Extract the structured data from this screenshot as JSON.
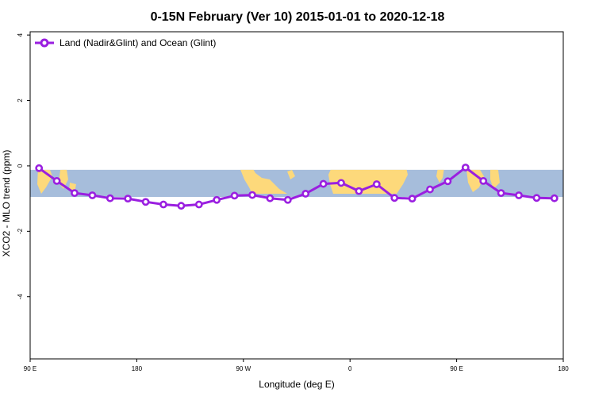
{
  "chart_data": {
    "type": "line",
    "title": "0-15N February (Ver 10)   2015-01-01 to 2020-12-18",
    "xlabel": "Longitude (deg E)",
    "ylabel": "XCO2 - MLO trend (ppm)",
    "x_tick_labels": [
      "90 E",
      "180",
      "90 W",
      "0",
      "90 E",
      "180"
    ],
    "x_tick_values": [
      90,
      180,
      270,
      360,
      450,
      540
    ],
    "xlim": [
      90,
      540
    ],
    "y_tick_labels": [
      "4",
      "2",
      "0",
      "-2",
      "-4"
    ],
    "y_tick_values": [
      4,
      2,
      0,
      -2,
      -4
    ],
    "ylim": [
      -5.9,
      4.1
    ],
    "map_band_range": [
      -0.95,
      -0.12
    ],
    "colors": {
      "series": "#9a1fe0",
      "ocean": "#a6bddb",
      "land": "#fdd97b",
      "marker_fill": "#ffffff"
    },
    "series": [
      {
        "name": "Land (Nadir&Glint) and Ocean (Glint)",
        "x": [
          97.5,
          112.5,
          127.5,
          142.5,
          157.5,
          172.5,
          187.5,
          202.5,
          217.5,
          232.5,
          247.5,
          262.5,
          277.5,
          292.5,
          307.5,
          322.5,
          337.5,
          352.5,
          367.5,
          382.5,
          397.5,
          412.5,
          427.5,
          442.5,
          457.5,
          472.5,
          487.5,
          502.5,
          517.5,
          532.5
        ],
        "values": [
          -0.07,
          -0.46,
          -0.83,
          -0.9,
          -0.99,
          -1.0,
          -1.1,
          -1.18,
          -1.22,
          -1.18,
          -1.04,
          -0.91,
          -0.89,
          -0.99,
          -1.04,
          -0.85,
          -0.55,
          -0.52,
          -0.77,
          -0.56,
          -0.98,
          -1.0,
          -0.72,
          -0.47,
          -0.05,
          -0.46,
          -0.83,
          -0.9,
          -0.98,
          -0.99
        ]
      }
    ]
  }
}
